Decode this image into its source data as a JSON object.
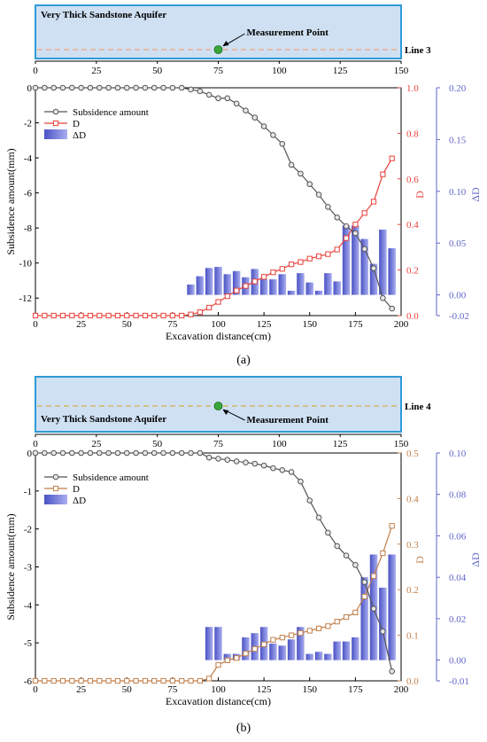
{
  "chart_data": [
    {
      "panel_label": "(a)",
      "type": "line",
      "schematic": {
        "aquifer_label": "Very Thick Sandstone Aquifer",
        "measurement_label": "Measurement Point",
        "line_label": "Line 3",
        "point_x": 75,
        "colors": {
          "fill": "#cfe0f3",
          "border": "#2e9bd6",
          "line": "#f4a27a",
          "point": "#3aa63a"
        },
        "axis": {
          "range": [
            0,
            150
          ],
          "ticks": [
            "0",
            "25",
            "50",
            "75",
            "100",
            "125",
            "150"
          ]
        }
      },
      "xlabel": "Excavation distance(cm)",
      "x_range": [
        0,
        200
      ],
      "x_ticks": [
        "0",
        "25",
        "50",
        "75",
        "100",
        "125",
        "150",
        "175",
        "200"
      ],
      "left_axis": {
        "label": "Subsidence amount(mm)",
        "range": [
          -13,
          0
        ],
        "ticks": [
          "0",
          "-2",
          "-4",
          "-6",
          "-8",
          "-10",
          "-12"
        ],
        "tick_values": [
          0,
          -2,
          -4,
          -6,
          -8,
          -10,
          -12
        ]
      },
      "right_axis_1": {
        "label": "D",
        "range": [
          0,
          1.0
        ],
        "ticks": [
          "0.0",
          "0.2",
          "0.4",
          "0.6",
          "0.8",
          "1.0"
        ],
        "color": "#e8413a"
      },
      "right_axis_2": {
        "label": "ΔD",
        "range": [
          -0.02,
          0.2
        ],
        "ticks": [
          "-0.02",
          "0.00",
          "0.05",
          "0.10",
          "0.15",
          "0.20"
        ],
        "tick_values": [
          -0.02,
          0,
          0.05,
          0.1,
          0.15,
          0.2
        ],
        "color": "#5f66c9"
      },
      "legend": [
        "Subsidence amount",
        "D",
        "ΔD"
      ],
      "legend_position": "top-left",
      "series": [
        {
          "name": "Subsidence amount",
          "color": "#555555",
          "x": [
            0,
            5,
            10,
            15,
            20,
            25,
            30,
            35,
            40,
            45,
            50,
            55,
            60,
            65,
            70,
            75,
            80,
            85,
            90,
            95,
            100,
            105,
            110,
            115,
            120,
            125,
            130,
            135,
            140,
            145,
            150,
            155,
            160,
            165,
            170,
            175,
            180,
            185,
            190,
            195
          ],
          "y": [
            0,
            0,
            0,
            0,
            0,
            0,
            0,
            0,
            0,
            0,
            0,
            0,
            0,
            0,
            0,
            0,
            0,
            -0.1,
            -0.2,
            -0.4,
            -0.6,
            -0.6,
            -0.9,
            -1.3,
            -1.7,
            -2.2,
            -2.7,
            -3.2,
            -4.4,
            -4.9,
            -5.5,
            -6.1,
            -6.8,
            -7.4,
            -7.9,
            -8.3,
            -9.2,
            -10.3,
            -12.0,
            -12.6
          ]
        },
        {
          "name": "D",
          "color": "#e8413a",
          "x": [
            0,
            5,
            10,
            15,
            20,
            25,
            30,
            35,
            40,
            45,
            50,
            55,
            60,
            65,
            70,
            75,
            80,
            85,
            90,
            95,
            100,
            105,
            110,
            115,
            120,
            125,
            130,
            135,
            140,
            145,
            150,
            155,
            160,
            165,
            170,
            175,
            180,
            185,
            190,
            195
          ],
          "y": [
            0,
            0,
            0,
            0,
            0,
            0,
            0,
            0,
            0,
            0,
            0,
            0,
            0,
            0,
            0,
            0,
            0,
            0.005,
            0.015,
            0.035,
            0.06,
            0.085,
            0.11,
            0.13,
            0.15,
            0.17,
            0.19,
            0.205,
            0.225,
            0.235,
            0.25,
            0.26,
            0.27,
            0.29,
            0.34,
            0.4,
            0.45,
            0.5,
            0.62,
            0.69
          ]
        },
        {
          "name": "ΔD",
          "color": "#6f73d6",
          "x": [
            85,
            90,
            95,
            100,
            105,
            110,
            115,
            120,
            125,
            130,
            135,
            140,
            145,
            150,
            155,
            160,
            165,
            170,
            175,
            180,
            185,
            190,
            195
          ],
          "y": [
            0.01,
            0.018,
            0.026,
            0.027,
            0.02,
            0.023,
            0.017,
            0.025,
            0.015,
            0.015,
            0.02,
            0.004,
            0.021,
            0.012,
            0.004,
            0.021,
            0.013,
            0.067,
            0.067,
            0.054,
            0.03,
            0.063,
            0.045
          ]
        }
      ]
    },
    {
      "panel_label": "(b)",
      "type": "line",
      "schematic": {
        "aquifer_label": "Very Thick Sandstone Aquifer",
        "measurement_label": "Measurement Point",
        "line_label": "Line 4",
        "point_x": 75,
        "colors": {
          "fill": "#cfe0f3",
          "border": "#2e9bd6",
          "line": "#d4b04a",
          "point": "#3aa63a"
        },
        "axis": {
          "range": [
            0,
            150
          ],
          "ticks": [
            "0",
            "25",
            "50",
            "75",
            "100",
            "125",
            "150"
          ]
        }
      },
      "xlabel": "Excavation distance(cm)",
      "x_range": [
        0,
        200
      ],
      "x_ticks": [
        "0",
        "25",
        "50",
        "75",
        "100",
        "125",
        "150",
        "175",
        "200"
      ],
      "left_axis": {
        "label": "Subsidence amount(mm)",
        "range": [
          -6,
          0
        ],
        "ticks": [
          "0",
          "-1",
          "-2",
          "-3",
          "-4",
          "-5",
          "-6"
        ],
        "tick_values": [
          0,
          -1,
          -2,
          -3,
          -4,
          -5,
          -6
        ]
      },
      "right_axis_1": {
        "label": "D",
        "range": [
          0,
          0.5
        ],
        "ticks": [
          "0.0",
          "0.1",
          "0.2",
          "0.3",
          "0.4",
          "0.5"
        ],
        "color": "#c17f4a"
      },
      "right_axis_2": {
        "label": "ΔD",
        "range": [
          -0.01,
          0.1
        ],
        "ticks": [
          "-0.01",
          "0.00",
          "0.02",
          "0.04",
          "0.06",
          "0.08",
          "0.10"
        ],
        "tick_values": [
          -0.01,
          0,
          0.02,
          0.04,
          0.06,
          0.08,
          0.1
        ],
        "color": "#5f66c9"
      },
      "legend": [
        "Subsidence amount",
        "D",
        "ΔD"
      ],
      "legend_position": "top-left",
      "series": [
        {
          "name": "Subsidence amount",
          "color": "#555555",
          "x": [
            0,
            5,
            10,
            15,
            20,
            25,
            30,
            35,
            40,
            45,
            50,
            55,
            60,
            65,
            70,
            75,
            80,
            85,
            90,
            95,
            100,
            105,
            110,
            115,
            120,
            125,
            130,
            135,
            140,
            145,
            150,
            155,
            160,
            165,
            170,
            175,
            180,
            185,
            190,
            195
          ],
          "y": [
            0,
            0,
            0,
            0,
            0,
            0,
            0,
            0,
            0,
            0,
            0,
            0,
            0,
            0,
            0,
            0,
            0,
            0,
            0,
            -0.12,
            -0.15,
            -0.18,
            -0.22,
            -0.25,
            -0.28,
            -0.33,
            -0.4,
            -0.45,
            -0.5,
            -0.75,
            -1.25,
            -1.7,
            -2.1,
            -2.45,
            -2.7,
            -2.95,
            -3.4,
            -4.1,
            -4.7,
            -5.75
          ]
        },
        {
          "name": "D",
          "color": "#c17f4a",
          "x": [
            0,
            5,
            10,
            15,
            20,
            25,
            30,
            35,
            40,
            45,
            50,
            55,
            60,
            65,
            70,
            75,
            80,
            85,
            90,
            95,
            100,
            105,
            110,
            115,
            120,
            125,
            130,
            135,
            140,
            145,
            150,
            155,
            160,
            165,
            170,
            175,
            180,
            185,
            190,
            195
          ],
          "y": [
            0,
            0,
            0,
            0,
            0,
            0,
            0,
            0,
            0,
            0,
            0,
            0,
            0,
            0,
            0,
            0,
            0,
            0,
            0,
            0.005,
            0.035,
            0.045,
            0.05,
            0.06,
            0.07,
            0.08,
            0.09,
            0.095,
            0.1,
            0.105,
            0.11,
            0.115,
            0.12,
            0.13,
            0.14,
            0.15,
            0.185,
            0.23,
            0.28,
            0.34
          ]
        },
        {
          "name": "ΔD",
          "color": "#6f73d6",
          "x": [
            95,
            100,
            105,
            110,
            115,
            120,
            125,
            130,
            135,
            140,
            145,
            150,
            155,
            160,
            165,
            170,
            175,
            180,
            185,
            190,
            195
          ],
          "y": [
            0.016,
            0.016,
            0.003,
            0.003,
            0.011,
            0.013,
            0.016,
            0.008,
            0.007,
            0.01,
            0.016,
            0.003,
            0.004,
            0.003,
            0.009,
            0.009,
            0.011,
            0.04,
            0.051,
            0.035,
            0.051
          ]
        }
      ]
    }
  ]
}
